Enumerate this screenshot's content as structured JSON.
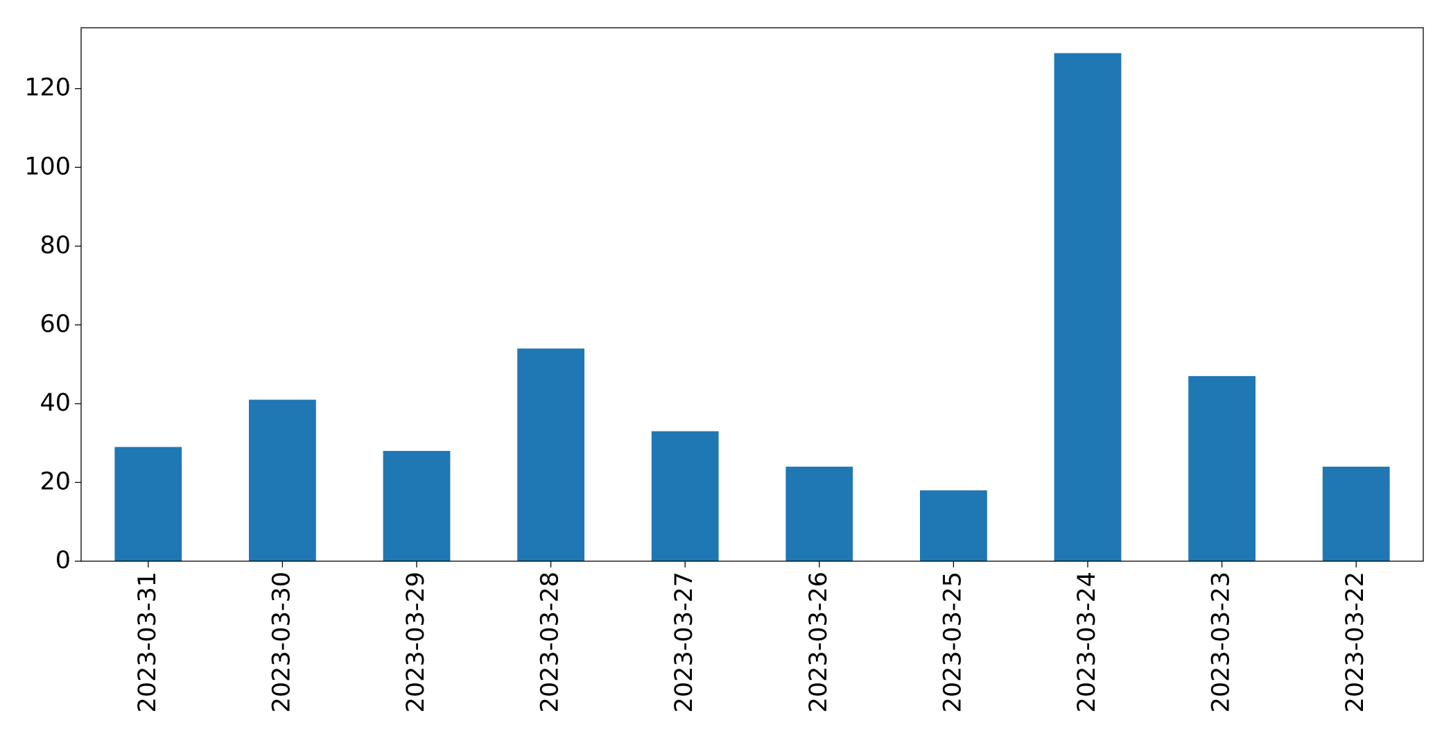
{
  "chart_data": {
    "type": "bar",
    "categories": [
      "2023-03-31",
      "2023-03-30",
      "2023-03-29",
      "2023-03-28",
      "2023-03-27",
      "2023-03-26",
      "2023-03-25",
      "2023-03-24",
      "2023-03-23",
      "2023-03-22"
    ],
    "values": [
      29,
      41,
      28,
      54,
      33,
      24,
      18,
      129,
      47,
      24
    ],
    "color": "#1f77b4",
    "ylim": [
      0,
      135.45
    ],
    "yticks": [
      0,
      20,
      40,
      60,
      80,
      100,
      120
    ],
    "grid": false
  }
}
